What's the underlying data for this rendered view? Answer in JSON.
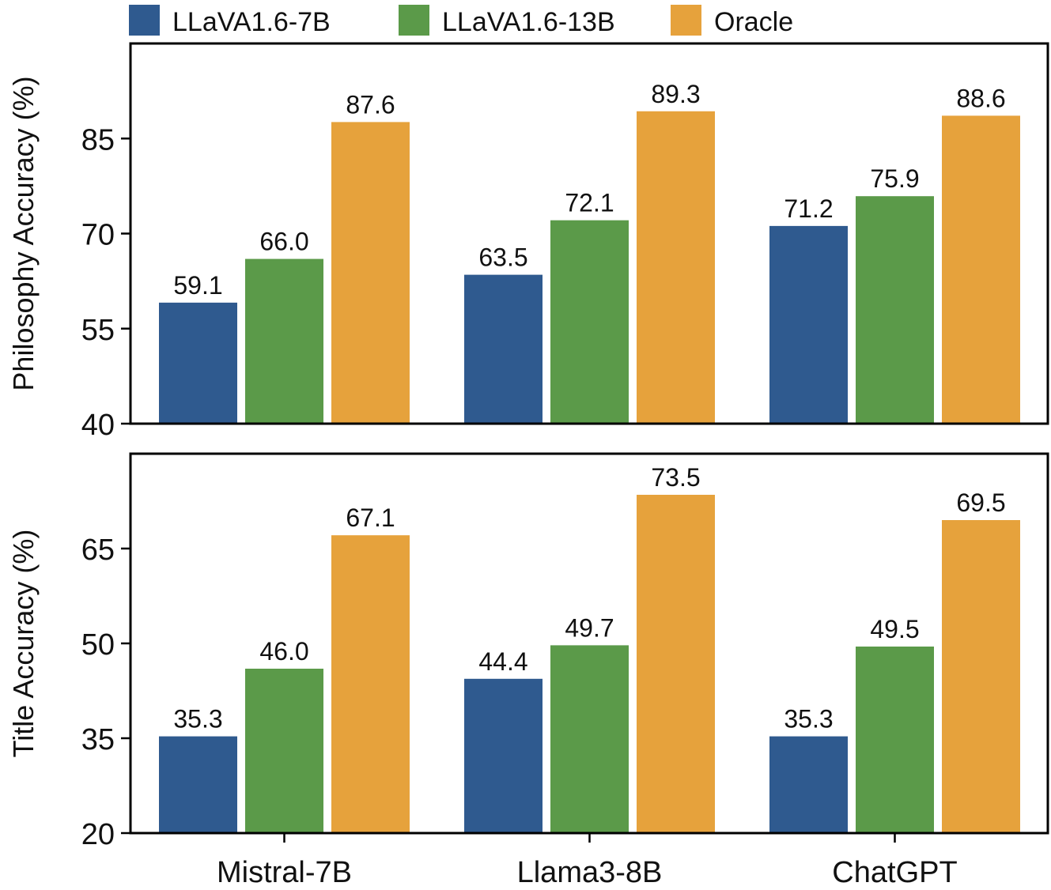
{
  "legend": [
    {
      "name": "LLaVA1.6-7B",
      "color": "#2f5a8f"
    },
    {
      "name": "LLaVA1.6-13B",
      "color": "#5b9a49"
    },
    {
      "name": "Oracle",
      "color": "#e6a23c"
    }
  ],
  "chart_data": [
    {
      "type": "bar",
      "categories": [
        "Mistral-7B",
        "Llama3-8B",
        "ChatGPT"
      ],
      "series": [
        {
          "name": "LLaVA1.6-7B",
          "values": [
            59.1,
            63.5,
            71.2
          ],
          "labels": [
            "59.1",
            "63.5",
            "71.2"
          ]
        },
        {
          "name": "LLaVA1.6-13B",
          "values": [
            66.0,
            72.1,
            75.9
          ],
          "labels": [
            "66.0",
            "72.1",
            "75.9"
          ]
        },
        {
          "name": "Oracle",
          "values": [
            87.6,
            89.3,
            88.6
          ],
          "labels": [
            "87.6",
            "89.3",
            "88.6"
          ]
        }
      ],
      "ylabel": "Philosophy Accuracy (%)",
      "ylim": [
        40,
        100
      ],
      "yticks": [
        40,
        55,
        70,
        85
      ],
      "ytick_labels": [
        "40",
        "55",
        "70",
        "85"
      ]
    },
    {
      "type": "bar",
      "categories": [
        "Mistral-7B",
        "Llama3-8B",
        "ChatGPT"
      ],
      "series": [
        {
          "name": "LLaVA1.6-7B",
          "values": [
            35.3,
            44.4,
            35.3
          ],
          "labels": [
            "35.3",
            "44.4",
            "35.3"
          ]
        },
        {
          "name": "LLaVA1.6-13B",
          "values": [
            46.0,
            49.7,
            49.5
          ],
          "labels": [
            "46.0",
            "49.7",
            "49.5"
          ]
        },
        {
          "name": "Oracle",
          "values": [
            67.1,
            73.5,
            69.5
          ],
          "labels": [
            "67.1",
            "73.5",
            "69.5"
          ]
        }
      ],
      "ylabel": "Title Accuracy (%)",
      "ylim": [
        20,
        80
      ],
      "yticks": [
        20,
        35,
        50,
        65
      ],
      "ytick_labels": [
        "20",
        "35",
        "50",
        "65"
      ]
    }
  ]
}
